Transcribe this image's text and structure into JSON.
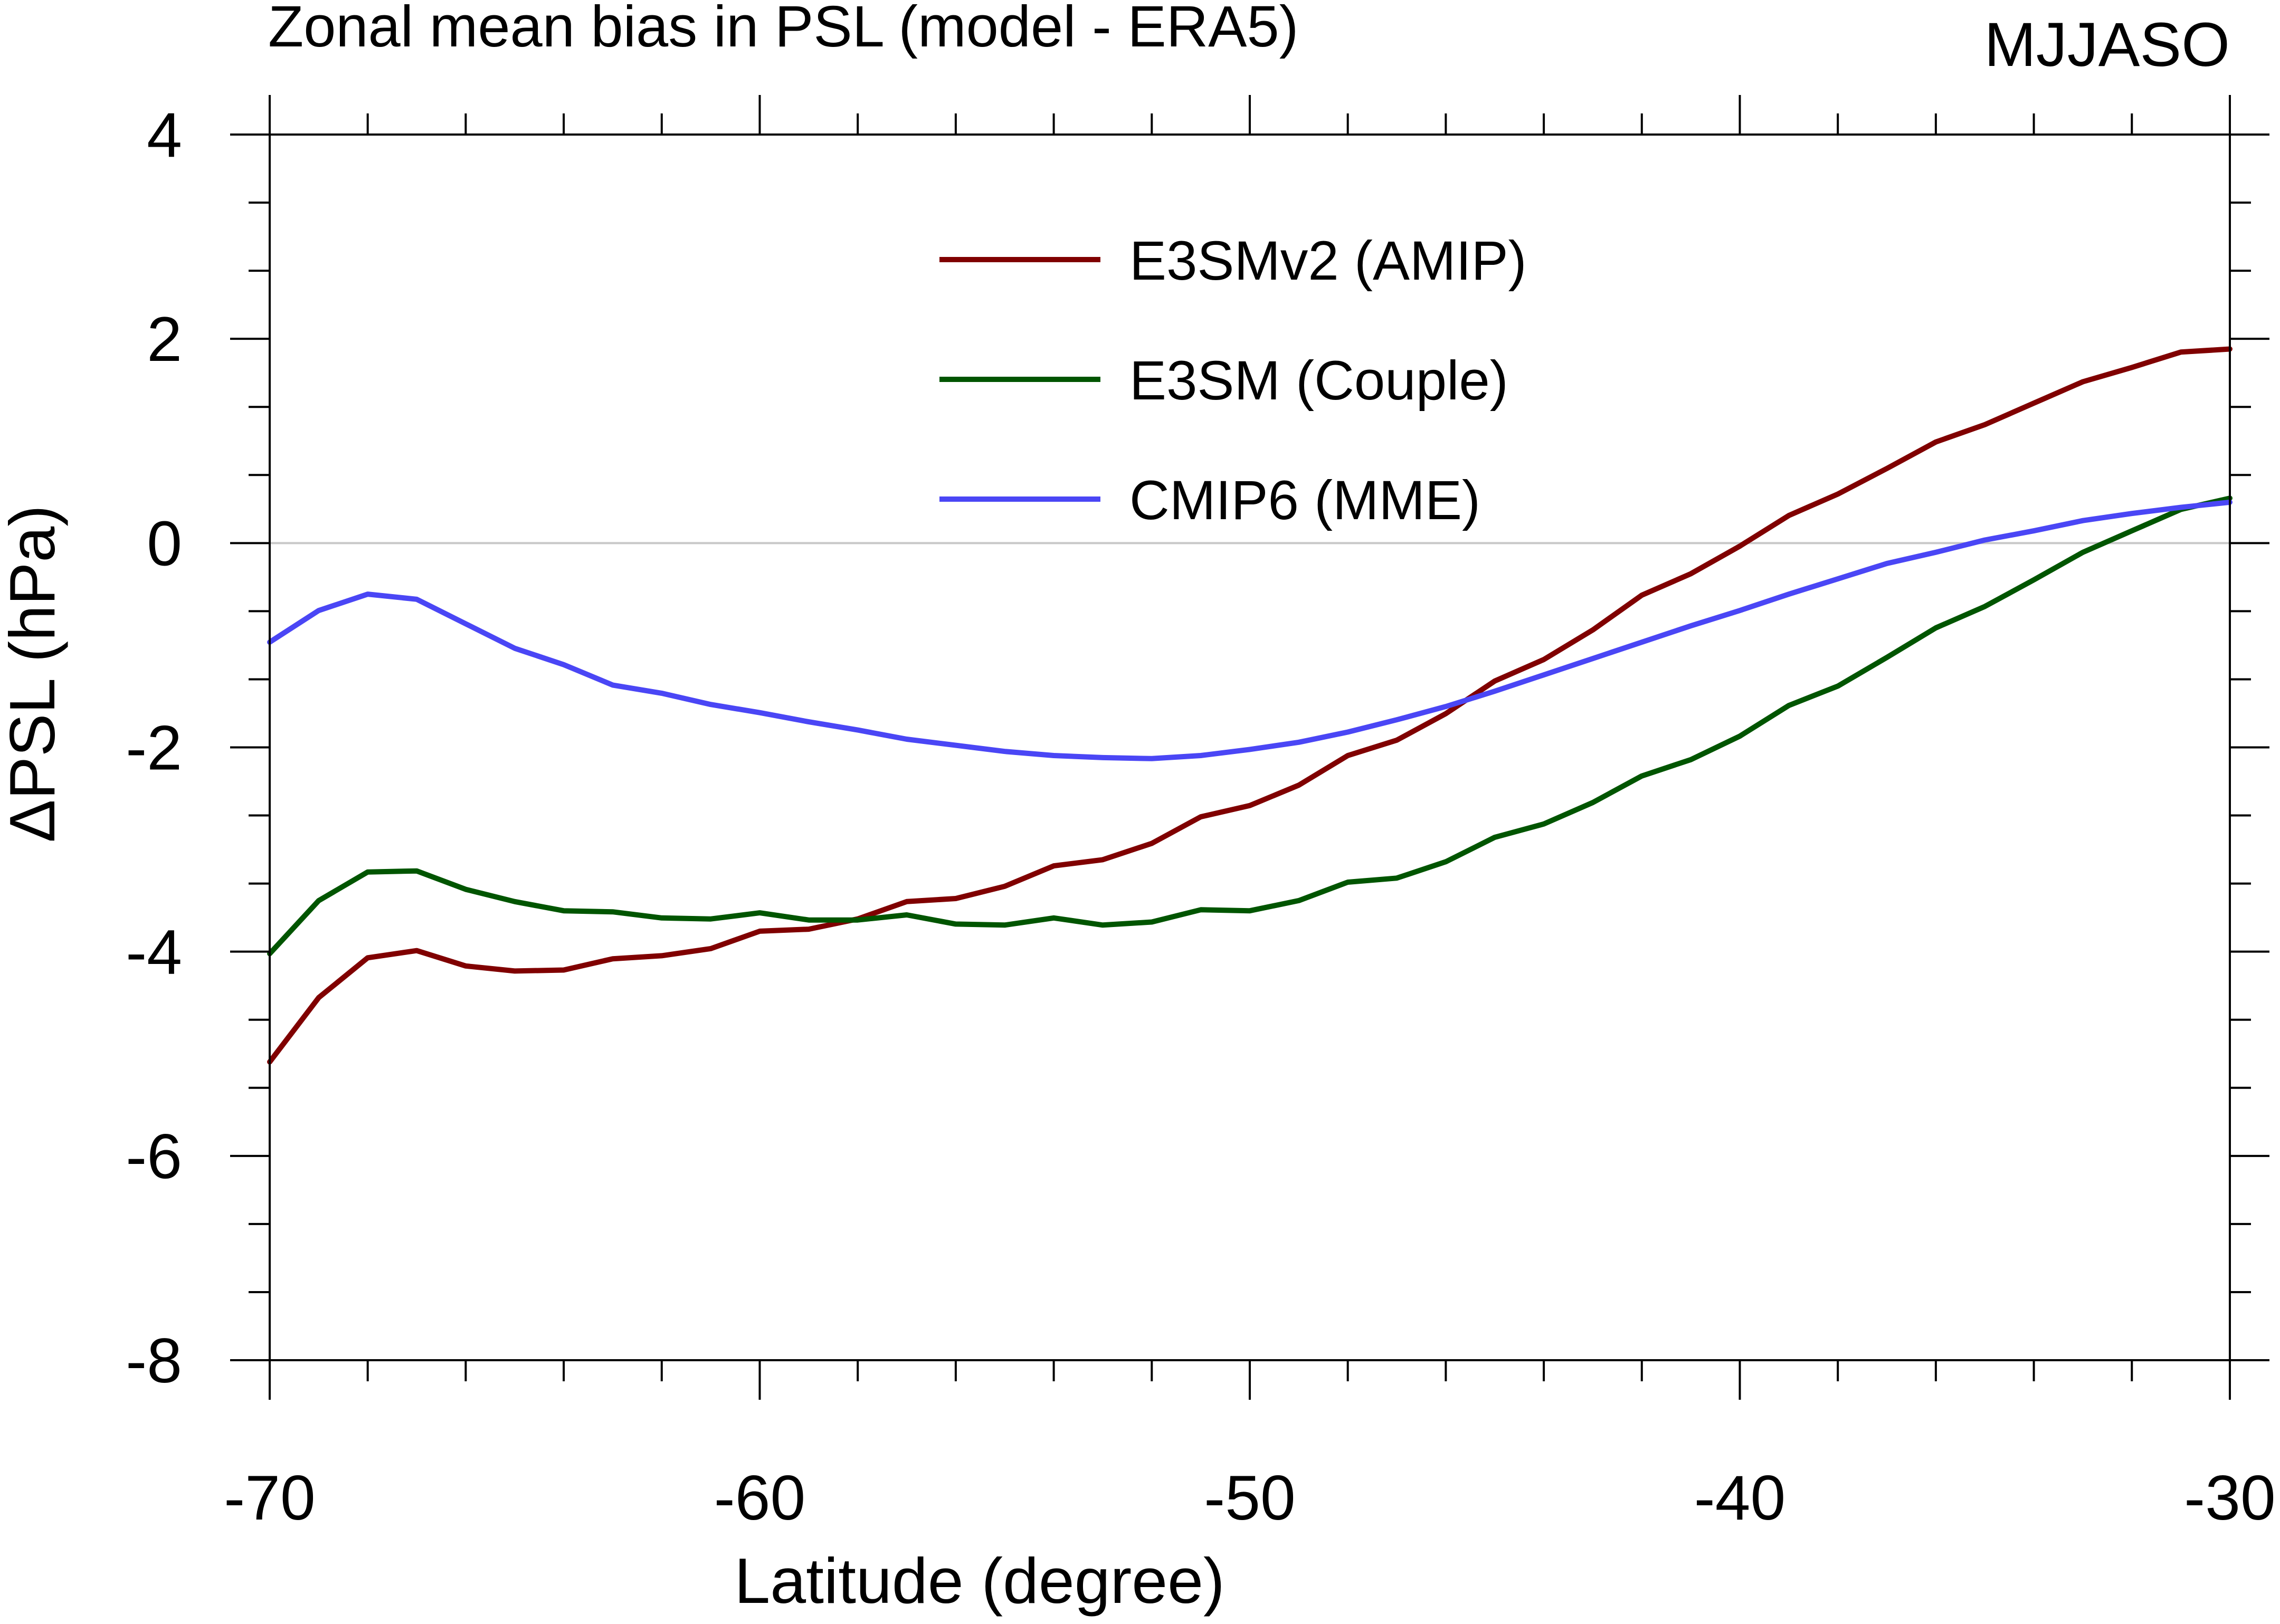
{
  "chart_data": {
    "type": "line",
    "title": "Zonal mean bias in PSL (model - ERA5)",
    "season": "MJJASO",
    "xlabel": "Latitude (degree)",
    "ylabel": "ΔPSL (hPa)",
    "xlim": [
      -70,
      -30
    ],
    "ylim": [
      -8,
      4
    ],
    "xticks": [
      -70,
      -60,
      -50,
      -40,
      -30
    ],
    "xtick_labels": [
      "-70",
      "-60",
      "-50",
      "-40",
      "-30"
    ],
    "yticks": [
      -8,
      -6,
      -4,
      -2,
      0,
      2,
      4
    ],
    "ytick_labels": [
      "-8",
      "-6",
      "-4",
      "-2",
      "0",
      "2",
      "4"
    ],
    "zero_line": true,
    "legend_position": "upper-center",
    "series": [
      {
        "name": "E3SMv2 (AMIP)",
        "color": "#800000",
        "x": [
          -70,
          -69,
          -68,
          -67,
          -66,
          -65,
          -64,
          -63,
          -62,
          -61,
          -60,
          -59,
          -58,
          -57,
          -56,
          -55,
          -54,
          -53,
          -52,
          -51,
          -50,
          -49,
          -48,
          -47,
          -46,
          -45,
          -44,
          -43,
          -42,
          -41,
          -40,
          -39,
          -38,
          -37,
          -36,
          -35,
          -34,
          -33,
          -32,
          -31,
          -30
        ],
        "values": [
          -5.08,
          -4.45,
          -4.06,
          -3.99,
          -4.14,
          -4.19,
          -4.18,
          -4.07,
          -4.04,
          -3.97,
          -3.8,
          -3.78,
          -3.68,
          -3.51,
          -3.48,
          -3.36,
          -3.16,
          -3.1,
          -2.94,
          -2.68,
          -2.57,
          -2.37,
          -2.08,
          -1.93,
          -1.67,
          -1.35,
          -1.14,
          -0.85,
          -0.51,
          -0.3,
          -0.03,
          0.27,
          0.48,
          0.73,
          0.99,
          1.16,
          1.37,
          1.58,
          1.72,
          1.87,
          1.9
        ]
      },
      {
        "name": "E3SM (Couple)",
        "color": "#005500",
        "x": [
          -70,
          -69,
          -68,
          -67,
          -66,
          -65,
          -64,
          -63,
          -62,
          -61,
          -60,
          -59,
          -58,
          -57,
          -56,
          -55,
          -54,
          -53,
          -52,
          -51,
          -50,
          -49,
          -48,
          -47,
          -46,
          -45,
          -44,
          -43,
          -42,
          -41,
          -40,
          -39,
          -38,
          -37,
          -36,
          -35,
          -34,
          -33,
          -32,
          -31,
          -30
        ],
        "values": [
          -4.02,
          -3.5,
          -3.22,
          -3.21,
          -3.39,
          -3.51,
          -3.6,
          -3.61,
          -3.67,
          -3.68,
          -3.62,
          -3.69,
          -3.69,
          -3.64,
          -3.73,
          -3.74,
          -3.67,
          -3.74,
          -3.71,
          -3.59,
          -3.6,
          -3.5,
          -3.32,
          -3.28,
          -3.12,
          -2.88,
          -2.75,
          -2.54,
          -2.28,
          -2.12,
          -1.89,
          -1.59,
          -1.4,
          -1.12,
          -0.83,
          -0.62,
          -0.36,
          -0.09,
          0.12,
          0.33,
          0.44
        ]
      },
      {
        "name": "CMIP6 (MME)",
        "color": "#4A46F5",
        "x": [
          -70,
          -69,
          -68,
          -67,
          -66,
          -65,
          -64,
          -63,
          -62,
          -61,
          -60,
          -59,
          -58,
          -57,
          -56,
          -55,
          -54,
          -53,
          -52,
          -51,
          -50,
          -49,
          -48,
          -47,
          -46,
          -45,
          -44,
          -43,
          -42,
          -41,
          -40,
          -39,
          -38,
          -37,
          -36,
          -35,
          -34,
          -33,
          -32,
          -31,
          -30
        ],
        "values": [
          -0.97,
          -0.66,
          -0.5,
          -0.55,
          -0.79,
          -1.03,
          -1.19,
          -1.39,
          -1.47,
          -1.58,
          -1.66,
          -1.75,
          -1.83,
          -1.92,
          -1.98,
          -2.04,
          -2.08,
          -2.1,
          -2.11,
          -2.08,
          -2.02,
          -1.95,
          -1.85,
          -1.73,
          -1.6,
          -1.45,
          -1.29,
          -1.13,
          -0.97,
          -0.81,
          -0.66,
          -0.5,
          -0.35,
          -0.2,
          -0.09,
          0.03,
          0.12,
          0.22,
          0.29,
          0.35,
          0.4
        ]
      }
    ]
  }
}
